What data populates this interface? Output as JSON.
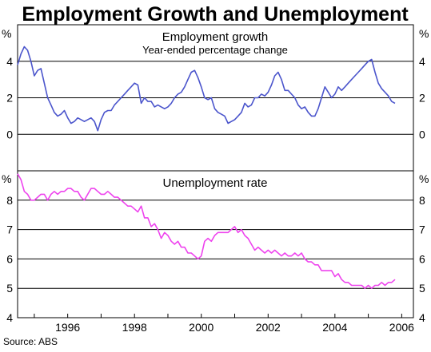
{
  "chart_data": {
    "title": "Employment Growth and Unemployment",
    "source": "Source: ABS",
    "x_ticks": [
      "1996",
      "1998",
      "2000",
      "2002",
      "2004",
      "2006"
    ],
    "xlim": [
      1994.5,
      2006.35
    ],
    "panels": [
      {
        "type": "line",
        "title": "Employment growth",
        "subtitle": "Year-ended percentage change",
        "unit": "%",
        "ylim": [
          -2,
          6
        ],
        "y_ticks": [
          "0",
          "2",
          "4"
        ],
        "y_tick_values": [
          0,
          2,
          4
        ],
        "grid": [
          0,
          2,
          4
        ],
        "color": "#4b55cc",
        "series": [
          {
            "x": [
              1994.5,
              1994.6,
              1994.7,
              1994.8,
              1994.9,
              1995.0,
              1995.1,
              1995.2,
              1995.3,
              1995.4,
              1995.5,
              1995.6,
              1995.7,
              1995.8,
              1995.9,
              1996.0,
              1996.1,
              1996.2,
              1996.3,
              1996.4,
              1996.5,
              1996.6,
              1996.7,
              1996.8,
              1996.9,
              1997.0,
              1997.1,
              1997.2,
              1997.3,
              1997.4,
              1997.5,
              1997.6,
              1997.7,
              1997.8,
              1997.9,
              1998.0,
              1998.1,
              1998.2,
              1998.3,
              1998.4,
              1998.5,
              1998.6,
              1998.7,
              1998.8,
              1998.9,
              1999.0,
              1999.1,
              1999.2,
              1999.3,
              1999.4,
              1999.5,
              1999.6,
              1999.7,
              1999.8,
              1999.9,
              2000.0,
              2000.1,
              2000.2,
              2000.3,
              2000.4,
              2000.5,
              2000.6,
              2000.7,
              2000.8,
              2000.9,
              2001.0,
              2001.1,
              2001.2,
              2001.3,
              2001.4,
              2001.5,
              2001.6,
              2001.7,
              2001.8,
              2001.9,
              2002.0,
              2002.1,
              2002.2,
              2002.3,
              2002.4,
              2002.5,
              2002.6,
              2002.7,
              2002.8,
              2002.9,
              2003.0,
              2003.1,
              2003.2,
              2003.3,
              2003.4,
              2003.5,
              2003.6,
              2003.7,
              2003.8,
              2003.9,
              2004.0,
              2004.1,
              2004.2,
              2004.3,
              2004.4,
              2004.5,
              2004.6,
              2004.7,
              2004.8,
              2004.9,
              2005.0,
              2005.1,
              2005.2,
              2005.3,
              2005.4,
              2005.5,
              2005.6,
              2005.7,
              2005.8
            ],
            "y": [
              3.8,
              4.4,
              4.8,
              4.6,
              4.0,
              3.2,
              3.5,
              3.6,
              2.8,
              2.0,
              1.6,
              1.2,
              1.0,
              1.1,
              1.3,
              0.9,
              0.6,
              0.7,
              0.9,
              0.8,
              0.7,
              0.8,
              0.9,
              0.7,
              0.2,
              0.8,
              1.2,
              1.3,
              1.3,
              1.6,
              1.8,
              2.0,
              2.2,
              2.4,
              2.6,
              2.8,
              2.7,
              1.7,
              2.0,
              1.8,
              1.8,
              1.5,
              1.6,
              1.5,
              1.4,
              1.5,
              1.7,
              2.0,
              2.2,
              2.3,
              2.6,
              3.0,
              3.4,
              3.5,
              3.1,
              2.6,
              2.0,
              1.9,
              2.0,
              1.4,
              1.2,
              1.1,
              1.0,
              0.6,
              0.7,
              0.8,
              1.0,
              1.2,
              1.7,
              1.5,
              1.6,
              2.0,
              2.0,
              2.2,
              2.1,
              2.3,
              2.7,
              3.2,
              3.4,
              3.0,
              2.4,
              2.4,
              2.2,
              2.0,
              1.6,
              1.4,
              1.5,
              1.2,
              1.0,
              1.0,
              1.4,
              2.0,
              2.6,
              2.3,
              2.0,
              2.2,
              2.6,
              2.4,
              2.6,
              2.8,
              3.0,
              3.2,
              3.4,
              3.6,
              3.8,
              4.0,
              4.1,
              3.4,
              2.8,
              2.5,
              2.3,
              2.1,
              1.8,
              1.7
            ]
          }
        ]
      },
      {
        "type": "line",
        "title": "Unemployment rate",
        "unit": "%",
        "ylim": [
          4,
          9
        ],
        "y_ticks": [
          "4",
          "5",
          "6",
          "7",
          "8"
        ],
        "y_tick_values": [
          4,
          5,
          6,
          7,
          8
        ],
        "grid": [
          5,
          6,
          7,
          8
        ],
        "color": "#ee44ee",
        "series": [
          {
            "x": [
              1994.5,
              1994.6,
              1994.7,
              1994.8,
              1994.9,
              1995.0,
              1995.1,
              1995.2,
              1995.3,
              1995.4,
              1995.5,
              1995.6,
              1995.7,
              1995.8,
              1995.9,
              1996.0,
              1996.1,
              1996.2,
              1996.3,
              1996.4,
              1996.5,
              1996.6,
              1996.7,
              1996.8,
              1996.9,
              1997.0,
              1997.1,
              1997.2,
              1997.3,
              1997.4,
              1997.5,
              1997.6,
              1997.7,
              1997.8,
              1997.9,
              1998.0,
              1998.1,
              1998.2,
              1998.3,
              1998.4,
              1998.5,
              1998.6,
              1998.7,
              1998.8,
              1998.9,
              1999.0,
              1999.1,
              1999.2,
              1999.3,
              1999.4,
              1999.5,
              1999.6,
              1999.7,
              1999.8,
              1999.9,
              2000.0,
              2000.1,
              2000.2,
              2000.3,
              2000.4,
              2000.5,
              2000.6,
              2000.7,
              2000.8,
              2000.9,
              2001.0,
              2001.1,
              2001.2,
              2001.3,
              2001.4,
              2001.5,
              2001.6,
              2001.7,
              2001.8,
              2001.9,
              2002.0,
              2002.1,
              2002.2,
              2002.3,
              2002.4,
              2002.5,
              2002.6,
              2002.7,
              2002.8,
              2002.9,
              2003.0,
              2003.1,
              2003.2,
              2003.3,
              2003.4,
              2003.5,
              2003.6,
              2003.7,
              2003.8,
              2003.9,
              2004.0,
              2004.1,
              2004.2,
              2004.3,
              2004.4,
              2004.5,
              2004.6,
              2004.7,
              2004.8,
              2004.9,
              2005.0,
              2005.1,
              2005.2,
              2005.3,
              2005.4,
              2005.5,
              2005.6,
              2005.7,
              2005.8
            ],
            "y": [
              8.9,
              8.7,
              8.3,
              8.2,
              8.0,
              8.0,
              8.1,
              8.2,
              8.2,
              8.0,
              8.2,
              8.3,
              8.2,
              8.3,
              8.3,
              8.4,
              8.4,
              8.3,
              8.3,
              8.1,
              8.0,
              8.2,
              8.4,
              8.4,
              8.3,
              8.2,
              8.2,
              8.3,
              8.2,
              8.1,
              8.1,
              8.0,
              7.9,
              7.8,
              7.8,
              7.7,
              7.6,
              7.8,
              7.4,
              7.4,
              7.1,
              7.2,
              7.0,
              6.7,
              6.9,
              6.8,
              6.6,
              6.5,
              6.6,
              6.4,
              6.4,
              6.2,
              6.2,
              6.1,
              6.0,
              6.1,
              6.6,
              6.7,
              6.6,
              6.8,
              6.9,
              6.9,
              6.9,
              6.9,
              7.0,
              7.1,
              6.9,
              7.0,
              6.8,
              6.7,
              6.5,
              6.3,
              6.4,
              6.3,
              6.2,
              6.3,
              6.2,
              6.3,
              6.2,
              6.1,
              6.2,
              6.1,
              6.1,
              6.2,
              6.1,
              6.2,
              6.0,
              5.9,
              5.9,
              5.8,
              5.8,
              5.6,
              5.6,
              5.6,
              5.6,
              5.4,
              5.5,
              5.3,
              5.2,
              5.2,
              5.1,
              5.1,
              5.1,
              5.1,
              5.0,
              5.1,
              5.0,
              5.1,
              5.1,
              5.2,
              5.1,
              5.2,
              5.2,
              5.3
            ]
          }
        ]
      }
    ]
  }
}
